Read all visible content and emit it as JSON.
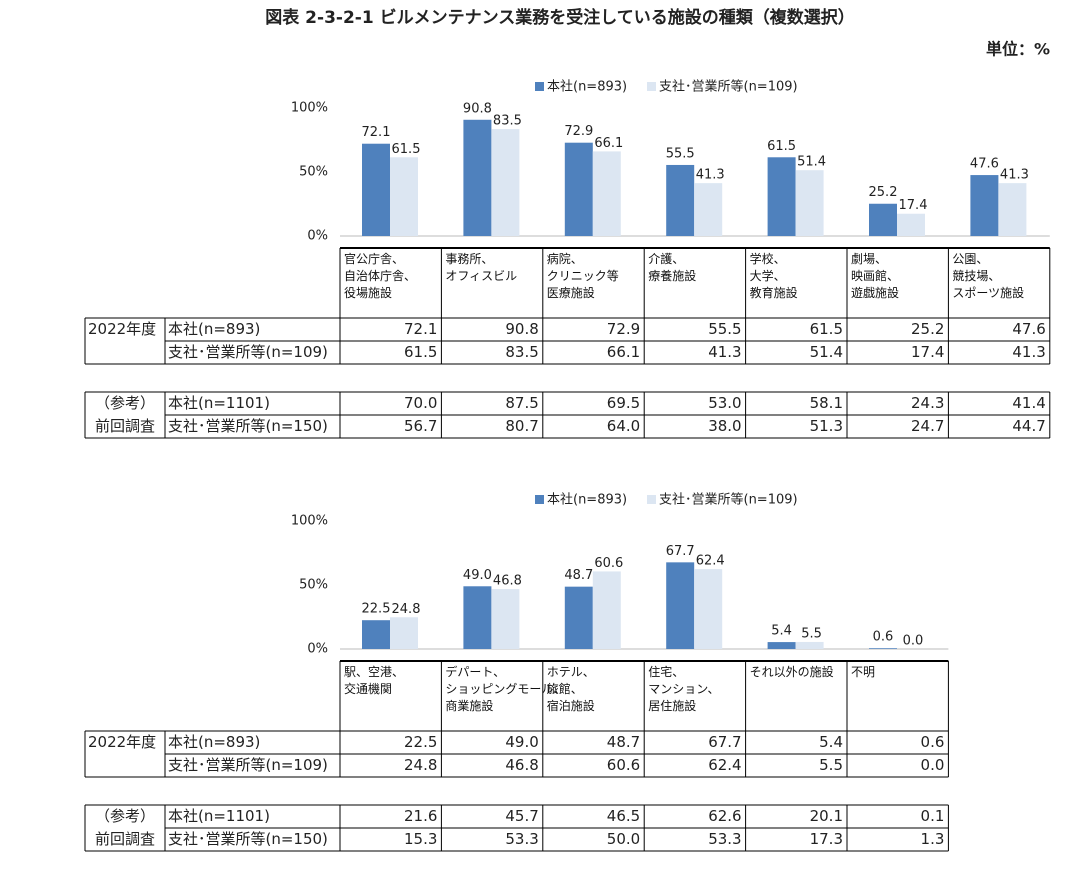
{
  "title": "図表 2-3-2-1 ビルメンテナンス業務を受注している施設の種類（複数選択）",
  "unit": "単位：%",
  "chart_data": [
    {
      "type": "bar",
      "categories": [
        "官公庁舎、\n自治体庁舎、\n役場施設",
        "事務所、\nオフィスビル",
        "病院、\nクリニック等\n医療施設",
        "介護、\n療養施設",
        "学校、\n大学、\n教育施設",
        "劇場、\n映画館、\n遊戯施設",
        "公園、\n競技場、\nスポーツ施設"
      ],
      "series": [
        {
          "name": "本社(n=893)",
          "color": "#4f81bd",
          "values": [
            72.1,
            90.8,
            72.9,
            55.5,
            61.5,
            25.2,
            47.6
          ],
          "value_labels": [
            "72.1",
            "90.8",
            "72.9",
            "55.5",
            "61.5",
            "25.2",
            "47.6"
          ]
        },
        {
          "name": "支社･営業所等(n=109)",
          "color": "#dce6f2",
          "values": [
            61.5,
            83.5,
            66.1,
            41.3,
            51.4,
            17.4,
            41.3
          ],
          "value_labels": [
            "61.5",
            "83.5",
            "66.1",
            "41.3",
            "51.4",
            "17.4",
            "41.3"
          ]
        }
      ],
      "ylim": [
        0,
        100
      ],
      "yticks": [
        {
          "value": 0,
          "label": "0%"
        },
        {
          "value": 50,
          "label": "50%"
        },
        {
          "value": 100,
          "label": "100%"
        }
      ],
      "table_label": "2022年度",
      "previous_survey": {
        "labels": [
          "（参考）",
          "前回調査"
        ],
        "rows": [
          {
            "name": "本社(n=1101)",
            "values": [
              "70.0",
              "87.5",
              "69.5",
              "53.0",
              "58.1",
              "24.3",
              "41.4"
            ]
          },
          {
            "name": "支社･営業所等(n=150)",
            "values": [
              "56.7",
              "80.7",
              "64.0",
              "38.0",
              "51.3",
              "24.7",
              "44.7"
            ]
          }
        ]
      }
    },
    {
      "type": "bar",
      "categories": [
        "駅、空港、\n交通機関",
        "デパート、\nショッピングモール、\n商業施設",
        "ホテル、\n旅館、\n宿泊施設",
        "住宅、\nマンション、\n居住施設",
        "それ以外の施設",
        "不明"
      ],
      "series": [
        {
          "name": "本社(n=893)",
          "color": "#4f81bd",
          "values": [
            22.5,
            49.0,
            48.7,
            67.7,
            5.4,
            0.6
          ],
          "value_labels": [
            "22.5",
            "49.0",
            "48.7",
            "67.7",
            "5.4",
            "0.6"
          ]
        },
        {
          "name": "支社･営業所等(n=109)",
          "color": "#dce6f2",
          "values": [
            24.8,
            46.8,
            60.6,
            62.4,
            5.5,
            0.0
          ],
          "value_labels": [
            "24.8",
            "46.8",
            "60.6",
            "62.4",
            "5.5",
            "0.0"
          ]
        }
      ],
      "ylim": [
        0,
        100
      ],
      "yticks": [
        {
          "value": 0,
          "label": "0%"
        },
        {
          "value": 50,
          "label": "50%"
        },
        {
          "value": 100,
          "label": "100%"
        }
      ],
      "table_label": "2022年度",
      "previous_survey": {
        "labels": [
          "（参考）",
          "前回調査"
        ],
        "rows": [
          {
            "name": "本社(n=1101)",
            "values": [
              "21.6",
              "45.7",
              "46.5",
              "62.6",
              "20.1",
              "0.1"
            ]
          },
          {
            "name": "支社･営業所等(n=150)",
            "values": [
              "15.3",
              "53.3",
              "50.0",
              "53.3",
              "17.3",
              "1.3"
            ]
          }
        ]
      }
    }
  ]
}
